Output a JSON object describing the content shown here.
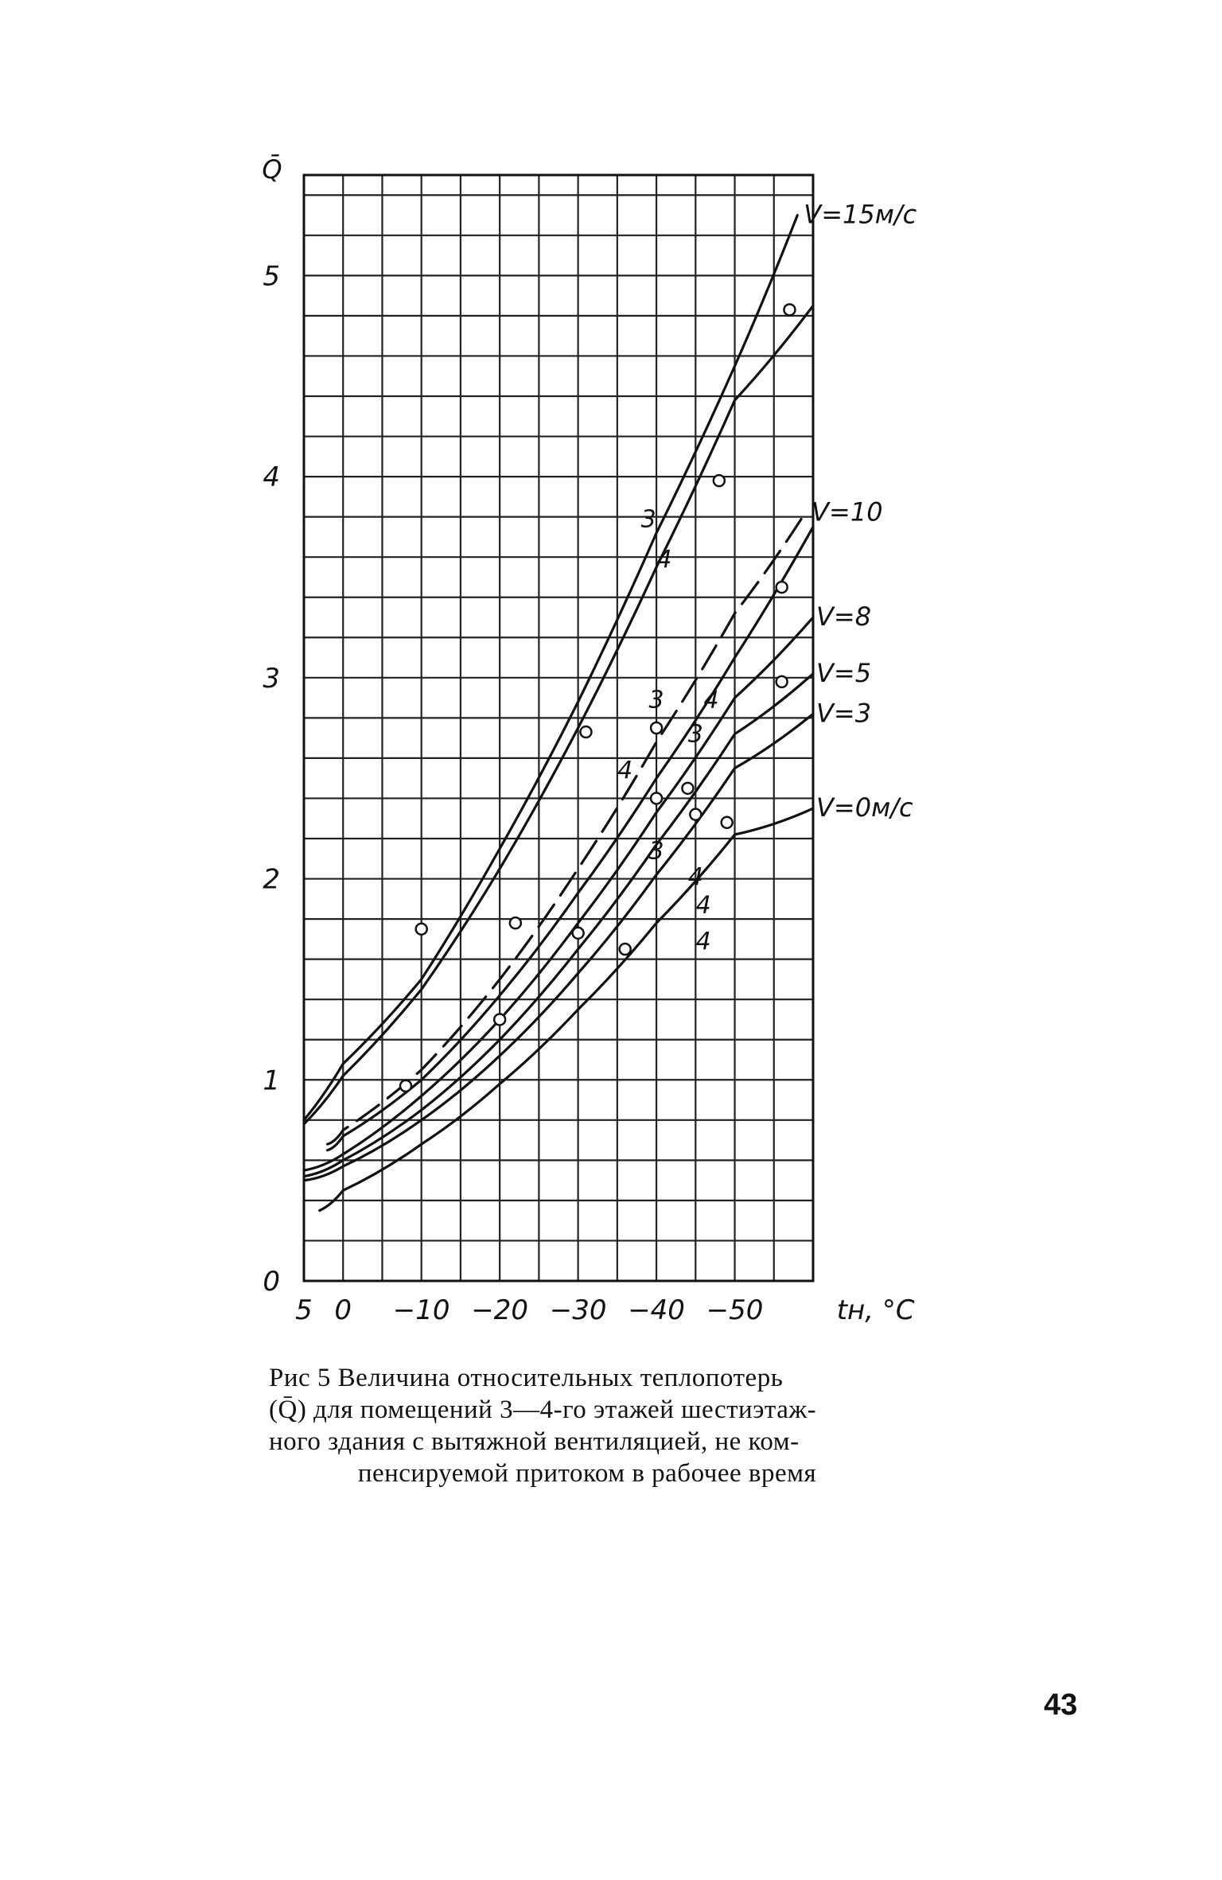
{
  "chart_data": {
    "type": "line",
    "y_axis_symbol": "Q̄",
    "xlabel": "tн, °C",
    "x_ticks": [
      5,
      0,
      -10,
      -20,
      -30,
      -40,
      -50
    ],
    "x_tick_labels": [
      "5",
      "0",
      "−10",
      "−20",
      "−30",
      "−40",
      "−50"
    ],
    "y_ticks": [
      0,
      1,
      2,
      3,
      4,
      5
    ],
    "y_tick_labels": [
      "0",
      "1",
      "2",
      "3",
      "4",
      "5"
    ],
    "xlim": [
      5,
      -60
    ],
    "ylim": [
      0,
      5.5
    ],
    "grid": true,
    "series_labels": [
      "V=15м/с",
      "V=10",
      "V=8",
      "V=5",
      "V=3",
      "V=0м/с"
    ],
    "series": [
      {
        "name": "V=15м/с",
        "curve": "3",
        "style": "solid",
        "x": [
          5,
          0,
          -10,
          -20,
          -30,
          -40,
          -50,
          -58
        ],
        "y": [
          0.8,
          1.08,
          1.5,
          2.15,
          2.88,
          3.72,
          4.55,
          5.3
        ]
      },
      {
        "name": "V=15м/с",
        "curve": "4",
        "style": "solid",
        "x": [
          5,
          0,
          -10,
          -20,
          -30,
          -40,
          -50,
          -60
        ],
        "y": [
          0.78,
          1.02,
          1.45,
          2.05,
          2.75,
          3.55,
          4.38,
          4.85
        ]
      },
      {
        "name": "V=10",
        "curve": "3",
        "style": "dashed",
        "x": [
          2,
          0,
          -10,
          -20,
          -30,
          -40,
          -50,
          -59
        ],
        "y": [
          0.68,
          0.75,
          1.05,
          1.5,
          2.05,
          2.68,
          3.32,
          3.82
        ]
      },
      {
        "name": "V=10",
        "curve": "4",
        "style": "solid",
        "x": [
          2,
          0,
          -10,
          -20,
          -30,
          -40,
          -50,
          -60
        ],
        "y": [
          0.65,
          0.72,
          1.0,
          1.42,
          1.93,
          2.5,
          3.1,
          3.75
        ]
      },
      {
        "name": "V=8",
        "curve": "4",
        "style": "solid",
        "x": [
          5,
          0,
          -10,
          -20,
          -30,
          -40,
          -50,
          -60
        ],
        "y": [
          0.55,
          0.63,
          0.92,
          1.3,
          1.78,
          2.33,
          2.9,
          3.3
        ]
      },
      {
        "name": "V=5",
        "curve": "4",
        "style": "solid",
        "x": [
          5,
          0,
          -10,
          -20,
          -30,
          -40,
          -50,
          -60
        ],
        "y": [
          0.52,
          0.6,
          0.85,
          1.2,
          1.65,
          2.17,
          2.72,
          3.02
        ]
      },
      {
        "name": "V=3",
        "curve": "4",
        "style": "solid",
        "x": [
          5,
          0,
          -10,
          -20,
          -30,
          -40,
          -50,
          -60
        ],
        "y": [
          0.5,
          0.57,
          0.8,
          1.12,
          1.53,
          2.02,
          2.55,
          2.82
        ]
      },
      {
        "name": "V=0м/с",
        "curve": "4",
        "style": "solid",
        "x": [
          3,
          0,
          -10,
          -20,
          -30,
          -40,
          -50,
          -60
        ],
        "y": [
          0.35,
          0.45,
          0.68,
          0.98,
          1.35,
          1.78,
          2.22,
          2.35
        ]
      }
    ],
    "markers": [
      {
        "x": -57,
        "y": 4.83
      },
      {
        "x": -48,
        "y": 3.98
      },
      {
        "x": -31,
        "y": 2.73
      },
      {
        "x": -10,
        "y": 1.75
      },
      {
        "x": -56,
        "y": 3.45
      },
      {
        "x": -40,
        "y": 2.75
      },
      {
        "x": -56,
        "y": 2.98
      },
      {
        "x": -44,
        "y": 2.45
      },
      {
        "x": -40,
        "y": 2.4
      },
      {
        "x": -45,
        "y": 2.32
      },
      {
        "x": -49,
        "y": 2.28
      },
      {
        "x": -22,
        "y": 1.78
      },
      {
        "x": -30,
        "y": 1.73
      },
      {
        "x": -36,
        "y": 1.65
      },
      {
        "x": -20,
        "y": 1.3
      },
      {
        "x": -8,
        "y": 0.97
      }
    ],
    "curve_labels": [
      "3",
      "4",
      "3",
      "4",
      "3",
      "4",
      "3",
      "4",
      "4",
      "4"
    ]
  },
  "caption": {
    "line1": "Рис 5  Величина  относительных  теплопотерь",
    "line2": "(Q̄)  для  помещений  3—4-го  этажей  шестиэтаж-",
    "line3": "ного  здания  с  вытяжной  вентиляцией,  не  ком-",
    "line4": "пенсируемой  притоком   в  рабочее  время"
  },
  "page_number": "43"
}
